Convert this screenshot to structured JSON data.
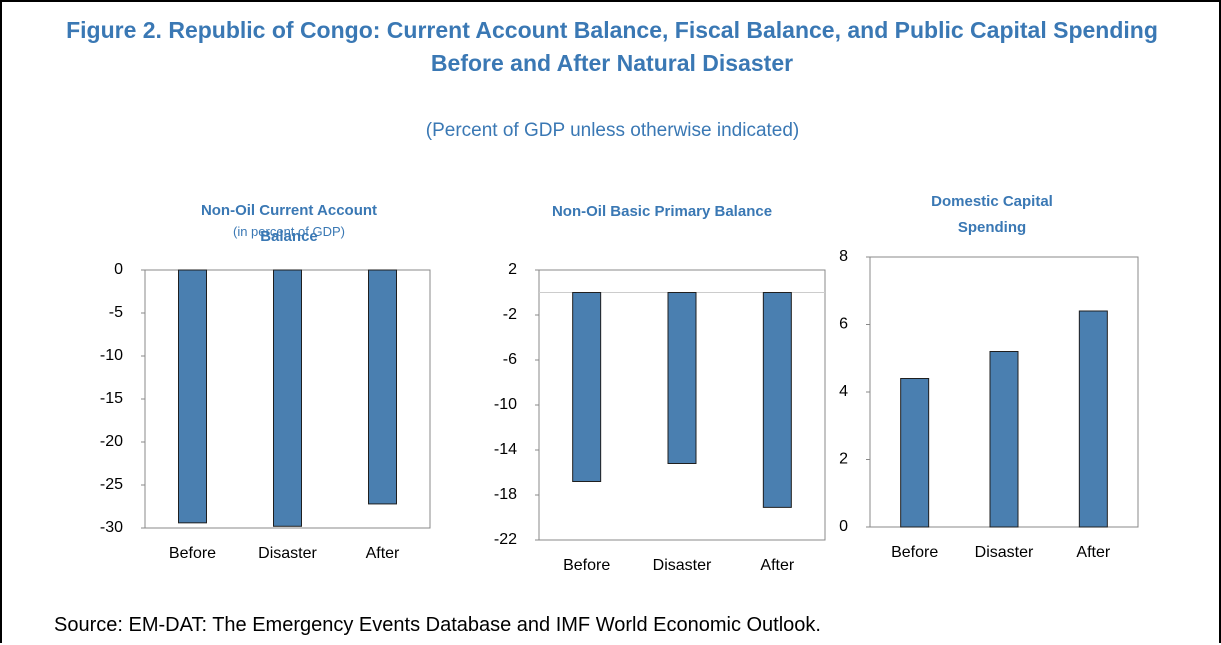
{
  "title": "Figure 2. Republic of Congo: Current Account Balance, Fiscal Balance, and Public Capital Spending Before and After Natural Disaster",
  "subtitle": "(Percent of GDP unless otherwise indicated)",
  "source": "Source: EM-DAT: The Emergency Events Database and IMF World Economic Outlook.",
  "chart_data": [
    {
      "type": "bar",
      "title": "Non-Oil Current Account Balance",
      "subtitle": "(in percent of GDP)",
      "categories": [
        "Before",
        "Disaster",
        "After"
      ],
      "values": [
        -29.4,
        -29.8,
        -27.2
      ],
      "color": "#4a7fb0",
      "ylim": [
        -30,
        0
      ],
      "yticks": [
        0,
        -5,
        -10,
        -15,
        -20,
        -25,
        -30
      ]
    },
    {
      "type": "bar",
      "title": "Non-Oil Basic Primary Balance",
      "categories": [
        "Before",
        "Disaster",
        "After"
      ],
      "values": [
        -16.8,
        -15.2,
        -19.1
      ],
      "color": "#4a7fb0",
      "ylim": [
        -22,
        2
      ],
      "yticks": [
        2,
        -2,
        -6,
        -10,
        -14,
        -18,
        -22
      ]
    },
    {
      "type": "bar",
      "title": "Domestic Capital Spending",
      "categories": [
        "Before",
        "Disaster",
        "After"
      ],
      "values": [
        4.4,
        5.2,
        6.4
      ],
      "color": "#4a7fb0",
      "ylim": [
        0,
        8
      ],
      "yticks": [
        0,
        2,
        4,
        6,
        8
      ]
    }
  ]
}
